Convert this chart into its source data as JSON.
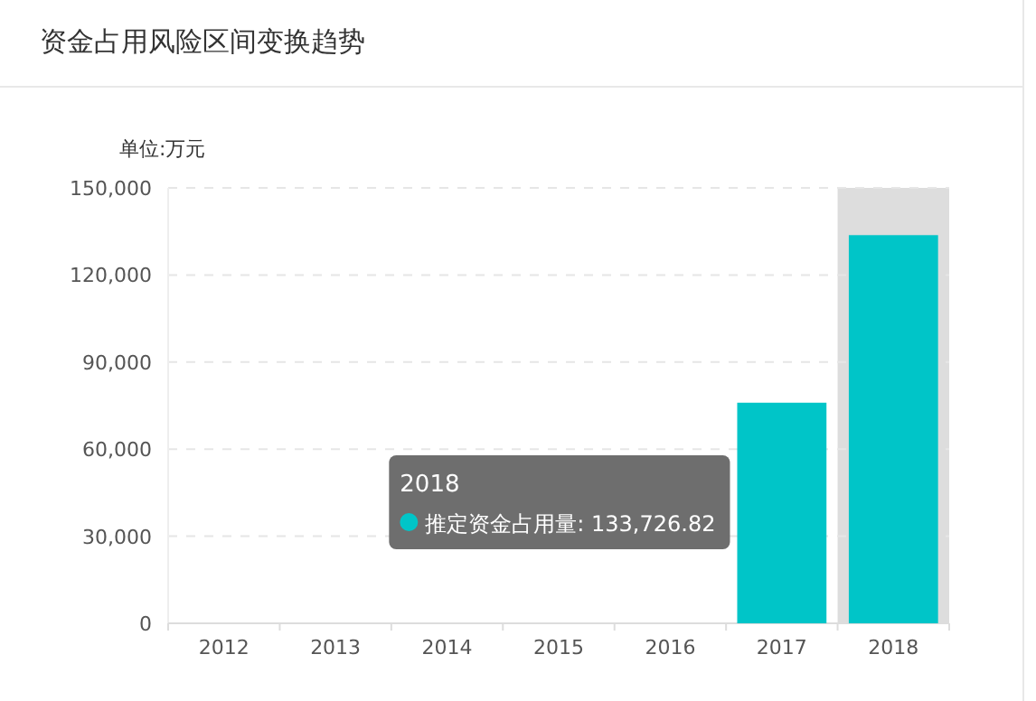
{
  "chart_data": {
    "type": "bar",
    "title": "资金占用风险区间变换趋势",
    "ylabel": "单位:万元",
    "categories": [
      "2012",
      "2013",
      "2014",
      "2015",
      "2016",
      "2017",
      "2018"
    ],
    "series": [
      {
        "color": "#00c5c8",
        "values": [
          0,
          0,
          0,
          0,
          0,
          76000,
          133726.82
        ]
      }
    ],
    "ylim": [
      0,
      150000
    ],
    "yticks": [
      {
        "value": 0,
        "label": "0"
      },
      {
        "value": 30000,
        "label": "30,000"
      },
      {
        "value": 60000,
        "label": "60,000"
      },
      {
        "value": 90000,
        "label": "90,000"
      },
      {
        "value": 120000,
        "label": "120,000"
      },
      {
        "value": 150000,
        "label": "150,000"
      }
    ],
    "grid": "y",
    "annotations": [
      "2018",
      "推定资金占用量: 133,726.82"
    ],
    "bands": [
      {
        "axis": "x",
        "from": "2018",
        "to": "2018",
        "color": "#dddddd"
      }
    ]
  }
}
